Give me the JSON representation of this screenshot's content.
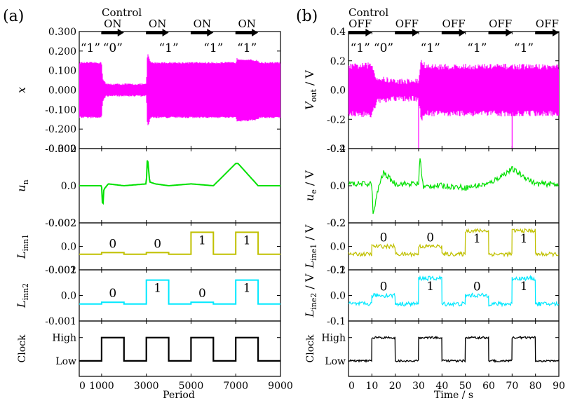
{
  "figure": {
    "panel_a_label": "(a)",
    "panel_b_label": "(b)",
    "control_label_a": "Control",
    "control_label_b": "Control",
    "arrows_a": [
      "ON",
      "ON",
      "ON",
      "ON"
    ],
    "arrows_b": [
      "OFF",
      "OFF",
      "OFF",
      "OFF",
      "OFF"
    ],
    "bits_a": [
      "“1”",
      "“0”",
      "“1”",
      "“1”",
      "“1”"
    ],
    "bits_b": [
      "“1”",
      "“0”",
      "“1”",
      "“1”",
      "“1”"
    ],
    "xlabel_a": "Period",
    "xlabel_b": "Time / s",
    "xticks_a": [
      "0",
      "1000",
      "3000",
      "5000",
      "7000",
      "9000"
    ],
    "xticks_b": [
      "0",
      "10",
      "20",
      "30",
      "40",
      "50",
      "60",
      "70",
      "80",
      "90"
    ],
    "ylabels_a": [
      "x",
      "u",
      "L",
      "L",
      "Clock"
    ],
    "ylabel_subs_a": [
      "",
      "n",
      "inn1",
      "inn2",
      ""
    ],
    "ylabels_b": [
      "V",
      "u",
      "L",
      "L",
      "Clock"
    ],
    "ylabel_subs_b": [
      "out",
      "e",
      "ine1",
      "ine2",
      ""
    ],
    "ylabel_units_b": [
      " / V",
      " / V",
      " / V",
      " / V",
      ""
    ],
    "clock_levels": [
      "High",
      "Low"
    ]
  },
  "chart_data": [
    {
      "panel": "(a)",
      "type": "line",
      "xlabel": "Period",
      "xlim": [
        0,
        9000
      ],
      "xticks": [
        0,
        1000,
        3000,
        5000,
        7000,
        9000
      ],
      "subplots": [
        {
          "ylabel": "x",
          "ylim": [
            -0.3,
            0.3
          ],
          "yticks": [
            "0.300",
            "0.200",
            "0.100",
            "0.000",
            "-0.100",
            "-0.200",
            "-0.300"
          ],
          "color": "#ff00ff",
          "series": "oscillation envelope",
          "envelope": {
            "x": [
              0,
              450,
              1000,
              1050,
              1200,
              2000,
              3000,
              3050,
              3200,
              5000,
              7000,
              7050,
              8000,
              8050,
              9000
            ],
            "upper": [
              0.14,
              0.14,
              0.14,
              0.06,
              0.03,
              0.03,
              0.03,
              0.19,
              0.14,
              0.14,
              0.14,
              0.16,
              0.15,
              0.14,
              0.14
            ]
          }
        },
        {
          "ylabel": "u_n",
          "ylim": [
            -0.002,
            0.002
          ],
          "yticks": [
            "0.002",
            "0.0",
            "-0.002"
          ],
          "color": "#00e000",
          "x": [
            0,
            1000,
            1050,
            1100,
            1300,
            2000,
            3000,
            3050,
            3150,
            3400,
            4000,
            5000,
            6000,
            7000,
            7100,
            8000,
            9000
          ],
          "y": [
            0,
            0,
            -0.0013,
            -0.0002,
            0.0001,
            0,
            0.0001,
            0.0016,
            0.0002,
            0.0001,
            0,
            0.0001,
            0,
            0.0012,
            0.0012,
            0,
            0
          ]
        },
        {
          "ylabel": "L_inn1",
          "ylim": [
            -0.001,
            0.002
          ],
          "yticks": [
            "0.002",
            "0.0",
            "-0.001"
          ],
          "color": "#c0c000",
          "x": [
            0,
            1000,
            2000,
            3000,
            4000,
            5000,
            6000,
            7000,
            8000,
            9000
          ],
          "y": [
            0,
            0.0001,
            0,
            0.0001,
            0,
            0.0014,
            0,
            0.0014,
            0,
            0
          ],
          "bit_labels": [
            "0",
            "0",
            "1",
            "1"
          ]
        },
        {
          "ylabel": "L_inn2",
          "ylim": [
            -0.001,
            0.002
          ],
          "yticks": [
            "0.002",
            "0.0",
            "-0.001"
          ],
          "color": "#00e8ff",
          "x": [
            0,
            1000,
            2000,
            3000,
            4000,
            5000,
            6000,
            7000,
            8000,
            9000
          ],
          "y": [
            0,
            0.0001,
            0,
            0.0014,
            0,
            0.0001,
            0,
            0.0014,
            0,
            0
          ],
          "bit_labels": [
            "0",
            "1",
            "0",
            "1"
          ]
        },
        {
          "ylabel": "Clock",
          "yticks": [
            "High",
            "Low"
          ],
          "color": "#000000",
          "x": [
            0,
            1000,
            2000,
            3000,
            4000,
            5000,
            6000,
            7000,
            8000,
            9000
          ],
          "y": [
            "Low",
            "High",
            "Low",
            "High",
            "Low",
            "High",
            "Low",
            "High",
            "Low",
            "Low"
          ]
        }
      ]
    },
    {
      "panel": "(b)",
      "type": "line",
      "xlabel": "Time / s",
      "xlim": [
        0,
        90
      ],
      "xticks": [
        0,
        10,
        20,
        30,
        40,
        50,
        60,
        70,
        80,
        90
      ],
      "subplots": [
        {
          "ylabel": "V_out / V",
          "ylim": [
            -0.4,
            0.4
          ],
          "yticks": [
            "0.4",
            "0.2",
            "0.0",
            "-0.2",
            "-0.4"
          ],
          "color": "#ff00ff",
          "series": "noisy oscillation envelope",
          "envelope": {
            "x": [
              0,
              10,
              12,
              20,
              30,
              31,
              33,
              40,
              50,
              60,
              70,
              80,
              90
            ],
            "upper": [
              0.16,
              0.17,
              0.08,
              0.06,
              0.06,
              0.2,
              0.16,
              0.16,
              0.16,
              0.16,
              0.16,
              0.16,
              0.16
            ]
          },
          "spikes": [
            {
              "x": 30,
              "y": -0.4
            },
            {
              "x": 70,
              "y": -0.4
            }
          ]
        },
        {
          "ylabel": "u_e / V",
          "ylim": [
            -0.2,
            0.2
          ],
          "yticks": [
            "0.2",
            "0.0",
            "-0.2"
          ],
          "color": "#00e000",
          "x": [
            0,
            10,
            10.5,
            13,
            15,
            20,
            30,
            30.5,
            32,
            35,
            40,
            50,
            60,
            70,
            80,
            90
          ],
          "y": [
            0.01,
            0.01,
            -0.16,
            0,
            0.07,
            0.01,
            0.01,
            0.16,
            -0.01,
            0,
            0,
            -0.01,
            0.01,
            0.09,
            0.01,
            0.01
          ]
        },
        {
          "ylabel": "L_ine1 / V",
          "ylim": [
            -0.1,
            0.2
          ],
          "yticks": [
            "0.2",
            "0.0",
            "-0.1"
          ],
          "color": "#c0c000",
          "x": [
            0,
            10,
            20,
            30,
            40,
            50,
            60,
            70,
            80,
            90
          ],
          "y": [
            0,
            0.05,
            0,
            0.05,
            0,
            0.15,
            0,
            0.15,
            0,
            0
          ],
          "bit_labels": [
            "0",
            "0",
            "1",
            "1"
          ]
        },
        {
          "ylabel": "L_ine2 / V",
          "ylim": [
            -0.1,
            0.2
          ],
          "yticks": [
            "0.2",
            "0.0",
            "-0.1"
          ],
          "color": "#00e8ff",
          "x": [
            0,
            10,
            20,
            30,
            40,
            50,
            60,
            70,
            80,
            90
          ],
          "y": [
            0,
            0.05,
            0,
            0.15,
            0,
            0.05,
            0,
            0.15,
            0,
            0
          ],
          "bit_labels": [
            "0",
            "1",
            "0",
            "1"
          ]
        },
        {
          "ylabel": "Clock",
          "yticks": [
            "High",
            "Low"
          ],
          "color": "#000000",
          "x": [
            0,
            10,
            20,
            30,
            40,
            50,
            60,
            70,
            80,
            90
          ],
          "y": [
            "Low",
            "High",
            "Low",
            "High",
            "Low",
            "High",
            "Low",
            "High",
            "Low",
            "Low"
          ]
        }
      ]
    }
  ]
}
